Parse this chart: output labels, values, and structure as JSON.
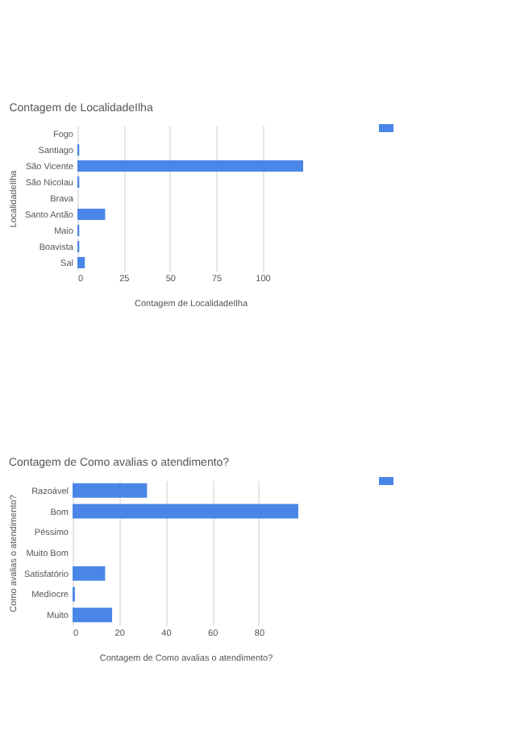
{
  "chart_data": [
    {
      "type": "bar",
      "orientation": "horizontal",
      "title": "Contagem de LocalidadeIlha",
      "xlabel": "Contagem de LocalidadeIlha",
      "ylabel": "LocalidadeIlha",
      "categories": [
        "Fogo",
        "Santiago",
        "São Vicente",
        "São Nicolau",
        "Brava",
        "Santo Antão",
        "Maio",
        "Boavista",
        "Sal"
      ],
      "series": [
        {
          "color": "#4a86e8",
          "values": [
            0,
            1,
            122,
            1,
            0,
            15,
            1,
            1,
            4
          ]
        }
      ],
      "xlim": [
        0,
        122
      ],
      "xticks": [
        0,
        25,
        50,
        75,
        100
      ],
      "grid": "x"
    },
    {
      "type": "bar",
      "orientation": "horizontal",
      "title": "Contagem de Como avalias o atendimento?",
      "xlabel": "Contagem de Como avalias o atendimento?",
      "ylabel": "Como avalias o atendimento?",
      "categories": [
        "Razoável",
        "Bom",
        "Péssimo",
        "Muito Bom",
        "Satisfatório",
        "Medíocre",
        "Muito"
      ],
      "series": [
        {
          "color": "#4a86e8",
          "values": [
            32,
            97,
            0,
            0,
            14,
            1,
            17
          ]
        }
      ],
      "xlim": [
        0,
        97
      ],
      "xticks": [
        0,
        20,
        40,
        60,
        80
      ],
      "grid": "x"
    }
  ]
}
